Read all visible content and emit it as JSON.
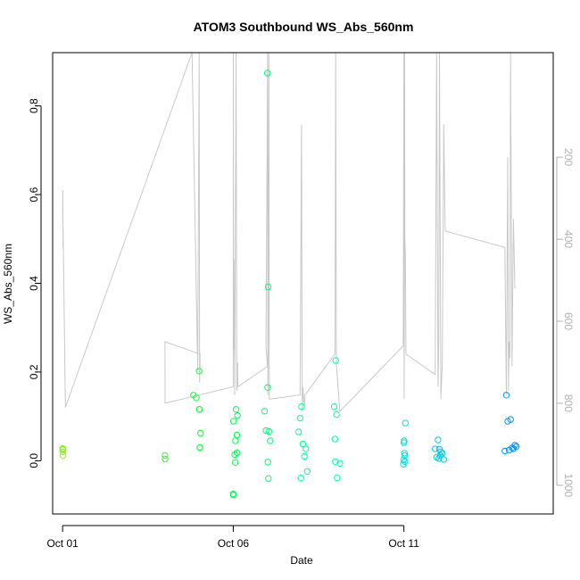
{
  "chart_data": {
    "type": "scatter",
    "title": "ATOM3 Southbound WS_Abs_560nm",
    "xlabel": "Date",
    "ylabel": "WS_Abs_560nm",
    "x_unit": "days",
    "xlim": [
      "2016-09-30T17:00",
      "2016-10-15T09:00"
    ],
    "ylim": [
      -0.12,
      0.92
    ],
    "x_ticks": [
      {
        "label": "Oct 01",
        "value": "2016-10-01"
      },
      {
        "label": "Oct 06",
        "value": "2016-10-06"
      },
      {
        "label": "Oct 11",
        "value": "2016-10-11"
      }
    ],
    "y_ticks": [
      {
        "label": "0.0",
        "value": 0.0
      },
      {
        "label": "0.2",
        "value": 0.2
      },
      {
        "label": "0.4",
        "value": 0.4
      },
      {
        "label": "0.6",
        "value": 0.6
      },
      {
        "label": "0.8",
        "value": 0.8
      }
    ],
    "y2_range": [
      -55,
      1070
    ],
    "y2_reversed": true,
    "y2_ticks": [
      {
        "label": "200",
        "value": 200
      },
      {
        "label": "400",
        "value": 400
      },
      {
        "label": "600",
        "value": 600
      },
      {
        "label": "800",
        "value": 800
      },
      {
        "label": "1000",
        "value": 1000
      }
    ],
    "series": [
      {
        "color_scale": [
          "#7fff00",
          "#00ff40",
          "#00ffcc",
          "#0090ff"
        ],
        "points": [
          {
            "x": "2016-10-01T00:00",
            "y": 0.028
          },
          {
            "x": "2016-10-01T00:10",
            "y": 0.025
          },
          {
            "x": "2016-10-01T00:20",
            "y": 0.027
          },
          {
            "x": "2016-10-01T00:05",
            "y": 0.02
          },
          {
            "x": "2016-10-01T00:15",
            "y": 0.012
          },
          {
            "x": "2016-10-04T00:00",
            "y": 0.012
          },
          {
            "x": "2016-10-04T00:05",
            "y": 0.004
          },
          {
            "x": "2016-10-04T20:00",
            "y": 0.148
          },
          {
            "x": "2016-10-05T00:00",
            "y": 0.202
          },
          {
            "x": "2016-10-04T22:00",
            "y": 0.142
          },
          {
            "x": "2016-10-05T00:10",
            "y": 0.116
          },
          {
            "x": "2016-10-05T00:15",
            "y": 0.116
          },
          {
            "x": "2016-10-05T01:00",
            "y": 0.062
          },
          {
            "x": "2016-10-05T00:30",
            "y": 0.03
          },
          {
            "x": "2016-10-05T00:40",
            "y": 0.03
          },
          {
            "x": "2016-10-06T00:00",
            "y": -0.075
          },
          {
            "x": "2016-10-06T00:05",
            "y": -0.077
          },
          {
            "x": "2016-10-06T00:10",
            "y": 0.089
          },
          {
            "x": "2016-10-06T02:00",
            "y": 0.116
          },
          {
            "x": "2016-10-06T03:00",
            "y": 0.102
          },
          {
            "x": "2016-10-06T02:30",
            "y": 0.058
          },
          {
            "x": "2016-10-06T01:30",
            "y": 0.045
          },
          {
            "x": "2016-10-06T02:40",
            "y": 0.018
          },
          {
            "x": "2016-10-06T01:00",
            "y": 0.014
          },
          {
            "x": "2016-10-06T01:20",
            "y": -0.004
          },
          {
            "x": "2016-10-07T00:00",
            "y": 0.874
          },
          {
            "x": "2016-10-07T00:30",
            "y": 0.392
          },
          {
            "x": "2016-10-07T00:10",
            "y": 0.165
          },
          {
            "x": "2016-10-06T22:00",
            "y": 0.112
          },
          {
            "x": "2016-10-06T23:00",
            "y": 0.068
          },
          {
            "x": "2016-10-07T01:00",
            "y": 0.066
          },
          {
            "x": "2016-10-07T02:00",
            "y": 0.045
          },
          {
            "x": "2016-10-07T00:20",
            "y": -0.003
          },
          {
            "x": "2016-10-07T00:40",
            "y": -0.04
          },
          {
            "x": "2016-10-08T00:00",
            "y": 0.122
          },
          {
            "x": "2016-10-07T23:00",
            "y": 0.096
          },
          {
            "x": "2016-10-07T22:00",
            "y": 0.065
          },
          {
            "x": "2016-10-08T01:00",
            "y": 0.038
          },
          {
            "x": "2016-10-08T03:00",
            "y": 0.027
          },
          {
            "x": "2016-10-08T02:00",
            "y": 0.01
          },
          {
            "x": "2016-10-08T04:00",
            "y": -0.024
          },
          {
            "x": "2016-10-07T23:30",
            "y": -0.039
          },
          {
            "x": "2016-10-09T00:00",
            "y": 0.226
          },
          {
            "x": "2016-10-08T23:00",
            "y": 0.122
          },
          {
            "x": "2016-10-09T00:30",
            "y": 0.104
          },
          {
            "x": "2016-10-08T23:30",
            "y": 0.049
          },
          {
            "x": "2016-10-08T23:45",
            "y": -0.002
          },
          {
            "x": "2016-10-09T03:00",
            "y": -0.006
          },
          {
            "x": "2016-10-09T01:00",
            "y": -0.038
          },
          {
            "x": "2016-10-11T01:00",
            "y": 0.085
          },
          {
            "x": "2016-10-11T00:10",
            "y": 0.045
          },
          {
            "x": "2016-10-11T00:00",
            "y": 0.041
          },
          {
            "x": "2016-10-11T00:20",
            "y": 0.017
          },
          {
            "x": "2016-10-11T00:30",
            "y": 0.012
          },
          {
            "x": "2016-10-10T23:50",
            "y": 0.002
          },
          {
            "x": "2016-10-11T00:40",
            "y": -0.002
          },
          {
            "x": "2016-10-10T23:40",
            "y": -0.008
          },
          {
            "x": "2016-10-12T00:00",
            "y": 0.047
          },
          {
            "x": "2016-10-11T22:00",
            "y": 0.027
          },
          {
            "x": "2016-10-12T01:00",
            "y": 0.026
          },
          {
            "x": "2016-10-12T02:00",
            "y": 0.02
          },
          {
            "x": "2016-10-12T03:00",
            "y": 0.017
          },
          {
            "x": "2016-10-12T01:30",
            "y": 0.012
          },
          {
            "x": "2016-10-11T23:00",
            "y": 0.008
          },
          {
            "x": "2016-10-12T00:30",
            "y": 0.005
          },
          {
            "x": "2016-10-12T04:00",
            "y": 0.003
          },
          {
            "x": "2016-10-14T00:00",
            "y": 0.148
          },
          {
            "x": "2016-10-14T03:00",
            "y": 0.093
          },
          {
            "x": "2016-10-14T01:00",
            "y": 0.089
          },
          {
            "x": "2016-10-14T06:00",
            "y": 0.035
          },
          {
            "x": "2016-10-14T07:00",
            "y": 0.032
          },
          {
            "x": "2016-10-14T04:00",
            "y": 0.029
          },
          {
            "x": "2016-10-14T05:00",
            "y": 0.027
          },
          {
            "x": "2016-10-14T02:00",
            "y": 0.024
          },
          {
            "x": "2016-10-13T23:00",
            "y": 0.022
          }
        ]
      }
    ],
    "y2_line": {
      "color": "#c8c8c8",
      "points": [
        {
          "x": "2016-10-01T00:00",
          "y2": 360
        },
        {
          "x": "2016-10-01T00:05",
          "y2": 310
        },
        {
          "x": "2016-10-01T00:10",
          "y2": 280
        },
        {
          "x": "2016-10-01T00:15",
          "y2": 420
        },
        {
          "x": "2016-10-01T00:20",
          "y2": 370
        },
        {
          "x": "2016-10-01T02:00",
          "y2": 810
        },
        {
          "x": "2016-10-04T19:00",
          "y2": -60
        },
        {
          "x": "2016-10-04T23:00",
          "y2": 720
        },
        {
          "x": "2016-10-05T00:00",
          "y2": -60
        },
        {
          "x": "2016-10-05T00:20",
          "y2": 750
        },
        {
          "x": "2016-10-05T00:30",
          "y2": 690
        },
        {
          "x": "2016-10-05T00:35",
          "y2": 720
        },
        {
          "x": "2016-10-05T00:40",
          "y2": 680
        },
        {
          "x": "2016-10-04T00:00",
          "y2": 650
        },
        {
          "x": "2016-10-04T00:05",
          "y2": 800
        },
        {
          "x": "2016-10-06T00:00",
          "y2": 760
        },
        {
          "x": "2016-10-06T00:05",
          "y2": -60
        },
        {
          "x": "2016-10-06T00:15",
          "y2": 670
        },
        {
          "x": "2016-10-06T00:30",
          "y2": 450
        },
        {
          "x": "2016-10-06T01:00",
          "y2": 780
        },
        {
          "x": "2016-10-06T02:00",
          "y2": -60
        },
        {
          "x": "2016-10-06T02:30",
          "y2": 770
        },
        {
          "x": "2016-10-06T03:00",
          "y2": 700
        },
        {
          "x": "2016-10-06T03:10",
          "y2": 760
        },
        {
          "x": "2016-10-07T00:00",
          "y2": 710
        },
        {
          "x": "2016-10-06T23:00",
          "y2": 660
        },
        {
          "x": "2016-10-07T00:10",
          "y2": -60
        },
        {
          "x": "2016-10-07T00:20",
          "y2": 780
        },
        {
          "x": "2016-10-07T00:30",
          "y2": 700
        },
        {
          "x": "2016-10-07T01:00",
          "y2": -60
        },
        {
          "x": "2016-10-07T01:20",
          "y2": 790
        },
        {
          "x": "2016-10-07T23:00",
          "y2": 780
        },
        {
          "x": "2016-10-08T00:00",
          "y2": 120
        },
        {
          "x": "2016-10-08T00:30",
          "y2": 820
        },
        {
          "x": "2016-10-08T01:00",
          "y2": 760
        },
        {
          "x": "2016-10-08T01:30",
          "y2": 790
        },
        {
          "x": "2016-10-08T02:00",
          "y2": 810
        },
        {
          "x": "2016-10-08T02:30",
          "y2": 780
        },
        {
          "x": "2016-10-08T23:30",
          "y2": 680
        },
        {
          "x": "2016-10-09T00:00",
          "y2": -60
        },
        {
          "x": "2016-10-09T00:30",
          "y2": 710
        },
        {
          "x": "2016-10-09T01:00",
          "y2": 730
        },
        {
          "x": "2016-10-09T03:00",
          "y2": 820
        },
        {
          "x": "2016-10-10T23:30",
          "y2": 660
        },
        {
          "x": "2016-10-11T00:00",
          "y2": -60
        },
        {
          "x": "2016-10-11T00:10",
          "y2": 790
        },
        {
          "x": "2016-10-11T00:20",
          "y2": 580
        },
        {
          "x": "2016-10-11T00:30",
          "y2": -60
        },
        {
          "x": "2016-10-11T00:40",
          "y2": 400
        },
        {
          "x": "2016-10-11T01:00",
          "y2": 430
        },
        {
          "x": "2016-10-11T01:30",
          "y2": 680
        },
        {
          "x": "2016-10-11T22:00",
          "y2": 730
        },
        {
          "x": "2016-10-11T23:00",
          "y2": -60
        },
        {
          "x": "2016-10-12T00:00",
          "y2": 760
        },
        {
          "x": "2016-10-12T00:30",
          "y2": 650
        },
        {
          "x": "2016-10-12T01:00",
          "y2": -60
        },
        {
          "x": "2016-10-12T02:00",
          "y2": 790
        },
        {
          "x": "2016-10-12T03:00",
          "y2": 700
        },
        {
          "x": "2016-10-12T04:00",
          "y2": 120
        },
        {
          "x": "2016-10-12T05:00",
          "y2": 380
        },
        {
          "x": "2016-10-13T23:00",
          "y2": 420
        },
        {
          "x": "2016-10-14T00:00",
          "y2": 780
        },
        {
          "x": "2016-10-14T01:00",
          "y2": 200
        },
        {
          "x": "2016-10-14T01:30",
          "y2": 770
        },
        {
          "x": "2016-10-14T02:00",
          "y2": 650
        },
        {
          "x": "2016-10-14T02:30",
          "y2": 690
        },
        {
          "x": "2016-10-14T03:00",
          "y2": -60
        },
        {
          "x": "2016-10-14T04:00",
          "y2": 710
        },
        {
          "x": "2016-10-14T05:00",
          "y2": 350
        },
        {
          "x": "2016-10-14T06:00",
          "y2": 520
        }
      ]
    }
  }
}
